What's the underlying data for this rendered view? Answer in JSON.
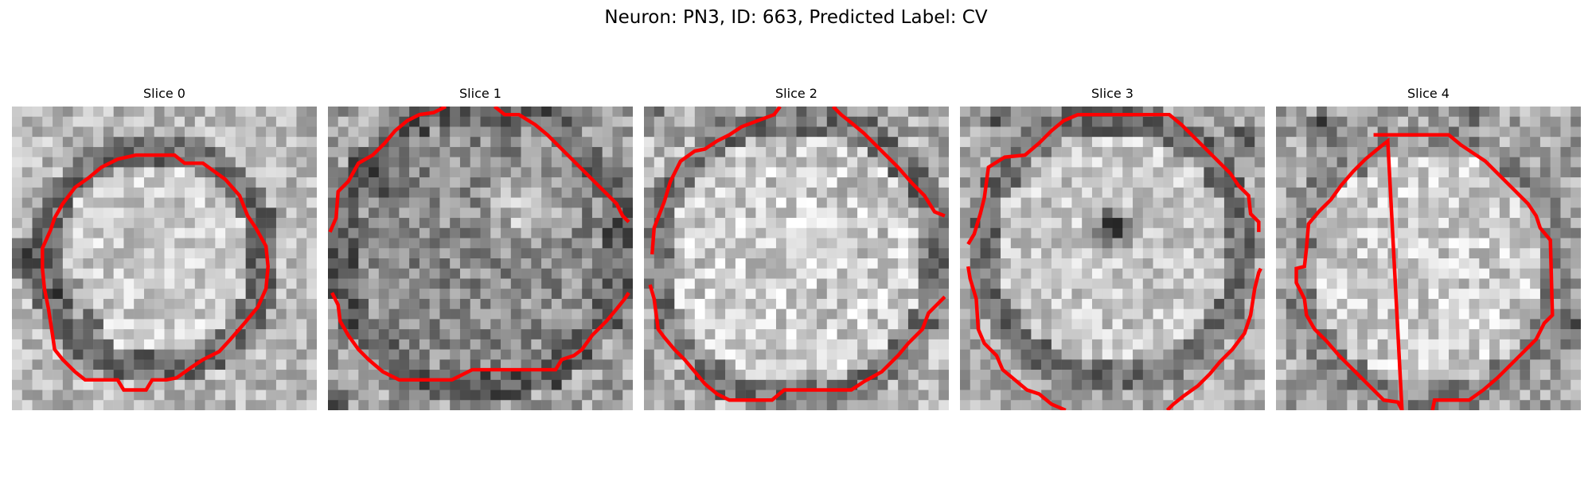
{
  "figure": {
    "title": "Neuron: PN3, ID: 663, Predicted Label: CV"
  },
  "colors": {
    "contour": "#ff0000",
    "background": "#ffffff"
  },
  "panels": [
    {
      "title": "Slice 0"
    },
    {
      "title": "Slice 1"
    },
    {
      "title": "Slice 2"
    },
    {
      "title": "Slice 3"
    },
    {
      "title": "Slice 4"
    }
  ]
}
